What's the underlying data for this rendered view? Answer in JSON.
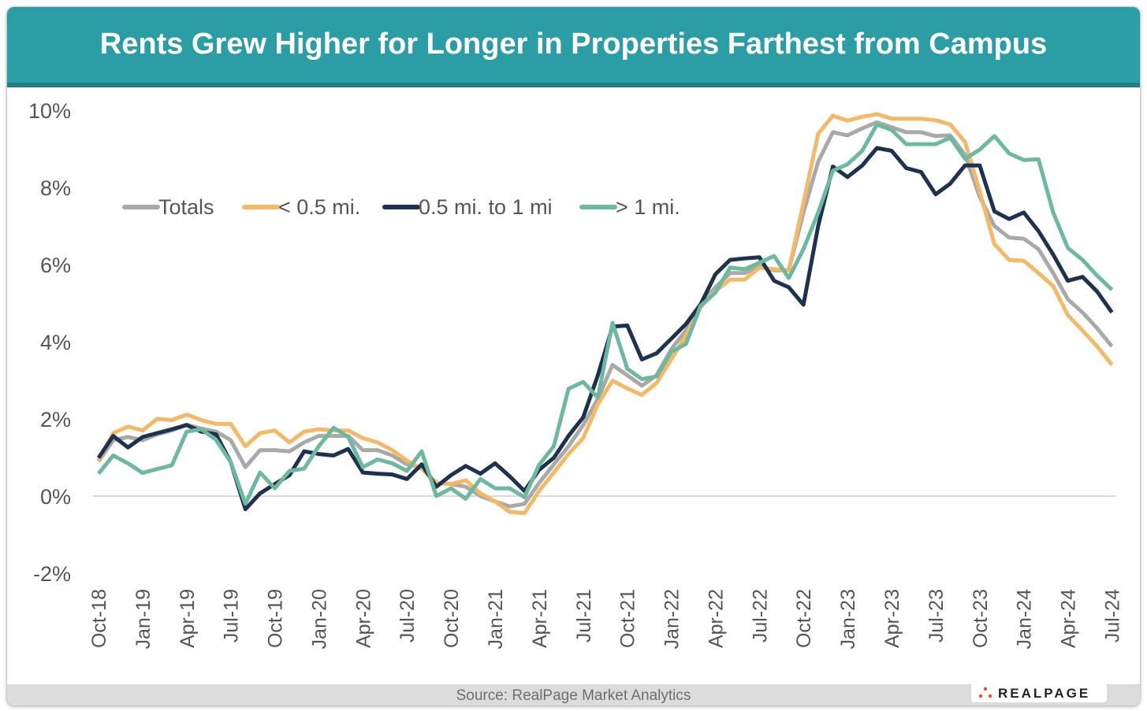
{
  "header": {
    "title": "Rents Grew Higher for Longer in Properties Farthest from Campus"
  },
  "footer": {
    "source": "Source: RealPage Market Analytics",
    "logo_text": "REALPAGE"
  },
  "colors": {
    "header": "#2b9ea5",
    "Totals": "#a9a9a9",
    "< 0.5 mi.": "#f3b967",
    "0.5 mi. to 1 mi": "#1c3250",
    "> 1 mi.": "#6cb9a0"
  },
  "chart_data": {
    "type": "line",
    "title": "Rents Grew Higher for Longer in Properties Farthest from Campus",
    "xlabel": "",
    "ylabel": "",
    "ylim": [
      -2,
      10
    ],
    "y_ticks": [
      "-2%",
      "0%",
      "2%",
      "4%",
      "6%",
      "8%",
      "10%"
    ],
    "y_tick_values": [
      -2,
      0,
      2,
      4,
      6,
      8,
      10
    ],
    "grid": "zero line only",
    "legend": "top-left",
    "x": [
      "Oct-18",
      "Nov-18",
      "Dec-18",
      "Jan-19",
      "Feb-19",
      "Mar-19",
      "Apr-19",
      "May-19",
      "Jun-19",
      "Jul-19",
      "Aug-19",
      "Sep-19",
      "Oct-19",
      "Nov-19",
      "Dec-19",
      "Jan-20",
      "Feb-20",
      "Mar-20",
      "Apr-20",
      "May-20",
      "Jun-20",
      "Jul-20",
      "Aug-20",
      "Sep-20",
      "Oct-20",
      "Nov-20",
      "Dec-20",
      "Jan-21",
      "Feb-21",
      "Mar-21",
      "Apr-21",
      "May-21",
      "Jun-21",
      "Jul-21",
      "Aug-21",
      "Sep-21",
      "Oct-21",
      "Nov-21",
      "Dec-21",
      "Jan-22",
      "Feb-22",
      "Mar-22",
      "Apr-22",
      "May-22",
      "Jun-22",
      "Jul-22",
      "Aug-22",
      "Sep-22",
      "Oct-22",
      "Nov-22",
      "Dec-22",
      "Jan-23",
      "Feb-23",
      "Mar-23",
      "Apr-23",
      "May-23",
      "Jun-23",
      "Jul-23",
      "Aug-23",
      "Sep-23",
      "Oct-23",
      "Nov-23",
      "Dec-23",
      "Jan-24",
      "Feb-24",
      "Mar-24",
      "Apr-24",
      "May-24",
      "Jun-24",
      "Jul-24"
    ],
    "x_tick_labels": [
      "Oct-18",
      "Jan-19",
      "Apr-19",
      "Jul-19",
      "Oct-19",
      "Jan-20",
      "Apr-20",
      "Jul-20",
      "Oct-20",
      "Jan-21",
      "Apr-21",
      "Jul-21",
      "Oct-21",
      "Jan-22",
      "Apr-22",
      "Jul-22",
      "Oct-22",
      "Jan-23",
      "Apr-23",
      "Jul-23",
      "Oct-23",
      "Jan-24",
      "Apr-24",
      "Jul-24"
    ],
    "series": [
      {
        "name": "Totals",
        "color": "#a9a9a9",
        "values": [
          0.9,
          1.45,
          1.53,
          1.45,
          1.6,
          1.7,
          1.85,
          1.75,
          1.67,
          1.45,
          0.75,
          1.19,
          1.19,
          1.16,
          1.39,
          1.56,
          1.56,
          1.56,
          1.19,
          1.19,
          1.05,
          0.82,
          0.75,
          0.34,
          0.31,
          0.24,
          0.0,
          -0.14,
          -0.27,
          -0.2,
          0.34,
          0.82,
          1.29,
          1.84,
          2.52,
          3.4,
          3.13,
          2.86,
          3.13,
          3.81,
          4.29,
          4.97,
          5.41,
          5.78,
          5.78,
          5.95,
          5.85,
          5.85,
          7.35,
          8.67,
          9.43,
          9.35,
          9.53,
          9.69,
          9.56,
          9.43,
          9.43,
          9.33,
          9.35,
          8.84,
          7.76,
          7.0,
          6.7,
          6.67,
          6.4,
          5.78,
          5.1,
          4.76,
          4.35,
          3.88
        ]
      },
      {
        "name": "< 0.5 mi.",
        "color": "#f3b967",
        "values": [
          0.92,
          1.63,
          1.8,
          1.7,
          2.0,
          1.97,
          2.11,
          1.97,
          1.87,
          1.87,
          1.29,
          1.63,
          1.7,
          1.39,
          1.67,
          1.73,
          1.7,
          1.7,
          1.5,
          1.39,
          1.19,
          0.92,
          0.71,
          0.34,
          0.31,
          0.41,
          0.07,
          -0.14,
          -0.41,
          -0.44,
          0.13,
          0.61,
          1.09,
          1.5,
          2.38,
          2.99,
          2.79,
          2.62,
          2.93,
          3.54,
          4.15,
          4.9,
          5.31,
          5.61,
          5.61,
          5.92,
          5.88,
          5.85,
          7.6,
          9.39,
          9.86,
          9.73,
          9.83,
          9.9,
          9.78,
          9.78,
          9.78,
          9.74,
          9.63,
          9.18,
          7.9,
          6.53,
          6.12,
          6.1,
          5.78,
          5.44,
          4.69,
          4.29,
          3.88,
          3.4
        ]
      },
      {
        "name": "0.5 mi. to 1 mi",
        "color": "#1c3250",
        "values": [
          0.99,
          1.56,
          1.26,
          1.53,
          1.63,
          1.73,
          1.84,
          1.67,
          1.6,
          0.88,
          -0.34,
          0.07,
          0.31,
          0.54,
          1.16,
          1.09,
          1.05,
          1.22,
          0.61,
          0.58,
          0.56,
          0.44,
          0.82,
          0.24,
          0.54,
          0.78,
          0.58,
          0.85,
          0.51,
          0.13,
          0.68,
          0.99,
          1.56,
          2.04,
          3.13,
          4.39,
          4.42,
          3.54,
          3.7,
          4.08,
          4.46,
          4.97,
          5.75,
          6.12,
          6.16,
          6.19,
          5.58,
          5.41,
          4.96,
          7.0,
          8.54,
          8.27,
          8.57,
          9.02,
          8.95,
          8.5,
          8.4,
          7.82,
          8.1,
          8.57,
          8.57,
          7.38,
          7.18,
          7.35,
          6.87,
          6.26,
          5.58,
          5.68,
          5.3,
          4.76
        ]
      },
      {
        "name": "> 1 mi.",
        "color": "#6cb9a0",
        "values": [
          0.58,
          1.05,
          0.85,
          0.6,
          0.7,
          0.8,
          1.67,
          1.73,
          1.46,
          0.88,
          -0.2,
          0.61,
          0.2,
          0.65,
          0.71,
          1.29,
          1.77,
          1.53,
          0.75,
          0.95,
          0.85,
          0.65,
          1.16,
          0.0,
          0.2,
          -0.07,
          0.44,
          0.2,
          0.2,
          -0.03,
          0.81,
          1.29,
          2.78,
          2.96,
          2.55,
          4.49,
          3.3,
          3.03,
          3.1,
          3.74,
          3.94,
          4.93,
          5.27,
          5.92,
          5.88,
          6.05,
          6.22,
          5.65,
          6.4,
          7.35,
          8.43,
          8.6,
          8.95,
          9.63,
          9.49,
          9.12,
          9.12,
          9.12,
          9.29,
          8.74,
          8.98,
          9.33,
          8.88,
          8.71,
          8.73,
          7.35,
          6.43,
          6.12,
          5.71,
          5.35
        ]
      }
    ]
  }
}
